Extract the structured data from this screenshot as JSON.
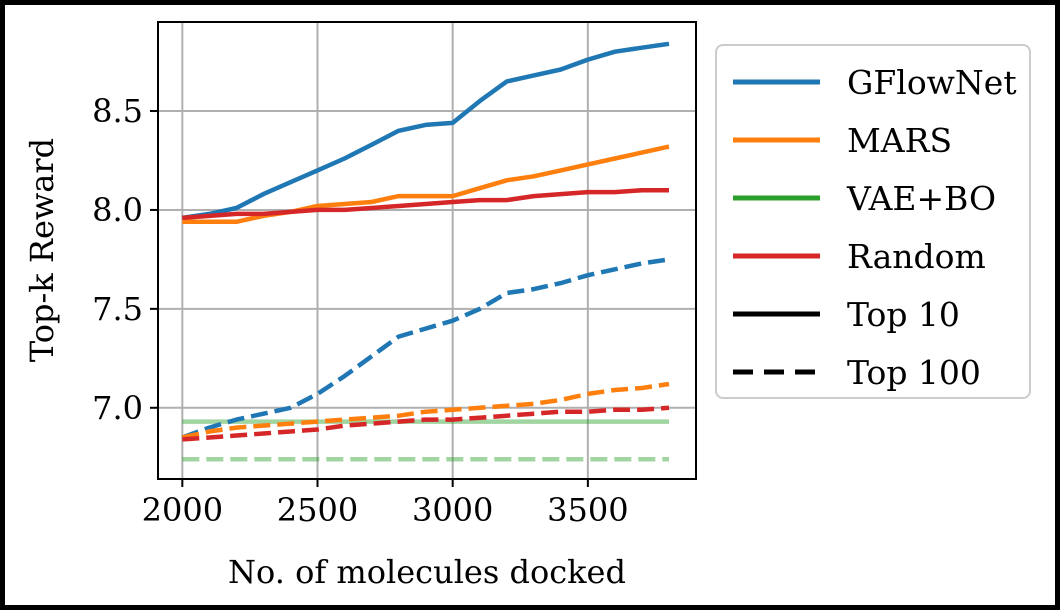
{
  "chart_data": {
    "type": "line",
    "xlabel": "No. of molecules docked",
    "ylabel": "Top-k Reward",
    "xlim": [
      1910,
      3900
    ],
    "ylim": [
      6.64,
      8.95
    ],
    "xticks": [
      2000,
      2500,
      3000,
      3500
    ],
    "yticks": [
      7.0,
      7.5,
      8.0,
      8.5
    ],
    "xtick_labels": [
      "2000",
      "2500",
      "3000",
      "3500"
    ],
    "ytick_labels": [
      "7.0",
      "7.5",
      "8.0",
      "8.5"
    ],
    "grid": true,
    "legend_position": "right-outside",
    "legend": [
      {
        "label": "GFlowNet",
        "color": "#1f77b4",
        "style": "solid"
      },
      {
        "label": "MARS",
        "color": "#ff7f0e",
        "style": "solid"
      },
      {
        "label": "VAE+BO",
        "color": "#2ca02c",
        "style": "solid"
      },
      {
        "label": "Random",
        "color": "#d62728",
        "style": "solid"
      },
      {
        "label": "Top 10",
        "color": "#000000",
        "style": "solid"
      },
      {
        "label": "Top 100",
        "color": "#000000",
        "style": "dashed"
      }
    ],
    "series": [
      {
        "method": "GFlowNet",
        "k": "Top 10",
        "color": "#1f77b4",
        "dash": false,
        "alpha": 1,
        "x": [
          2000,
          2100,
          2200,
          2300,
          2400,
          2500,
          2600,
          2700,
          2800,
          2900,
          3000,
          3100,
          3200,
          3300,
          3400,
          3500,
          3600,
          3700,
          3800
        ],
        "y": [
          7.96,
          7.98,
          8.01,
          8.08,
          8.14,
          8.2,
          8.26,
          8.33,
          8.4,
          8.43,
          8.44,
          8.55,
          8.65,
          8.68,
          8.71,
          8.76,
          8.8,
          8.82,
          8.84
        ]
      },
      {
        "method": "MARS",
        "k": "Top 10",
        "color": "#ff7f0e",
        "dash": false,
        "alpha": 1,
        "x": [
          2000,
          2100,
          2200,
          2300,
          2400,
          2500,
          2600,
          2700,
          2800,
          2900,
          3000,
          3100,
          3200,
          3300,
          3400,
          3500,
          3600,
          3700,
          3800
        ],
        "y": [
          7.94,
          7.94,
          7.94,
          7.97,
          7.99,
          8.02,
          8.03,
          8.04,
          8.07,
          8.07,
          8.07,
          8.11,
          8.15,
          8.17,
          8.2,
          8.23,
          8.26,
          8.29,
          8.32
        ]
      },
      {
        "method": "VAE+BO",
        "k": "Top 10",
        "color": "#2ca02c",
        "dash": false,
        "alpha": 0.45,
        "x": [
          2000,
          3800
        ],
        "y": [
          6.93,
          6.93
        ]
      },
      {
        "method": "Random",
        "k": "Top 10",
        "color": "#d62728",
        "dash": false,
        "alpha": 1,
        "x": [
          2000,
          2100,
          2200,
          2300,
          2400,
          2500,
          2600,
          2700,
          2800,
          2900,
          3000,
          3100,
          3200,
          3300,
          3400,
          3500,
          3600,
          3700,
          3800
        ],
        "y": [
          7.96,
          7.97,
          7.98,
          7.98,
          7.99,
          8.0,
          8.0,
          8.01,
          8.02,
          8.03,
          8.04,
          8.05,
          8.05,
          8.07,
          8.08,
          8.09,
          8.09,
          8.1,
          8.1
        ]
      },
      {
        "method": "GFlowNet",
        "k": "Top 100",
        "color": "#1f77b4",
        "dash": true,
        "alpha": 1,
        "x": [
          2000,
          2100,
          2200,
          2300,
          2400,
          2500,
          2600,
          2700,
          2800,
          2900,
          3000,
          3100,
          3200,
          3300,
          3400,
          3500,
          3600,
          3700,
          3800
        ],
        "y": [
          6.85,
          6.9,
          6.94,
          6.97,
          7.0,
          7.07,
          7.16,
          7.26,
          7.36,
          7.4,
          7.44,
          7.5,
          7.58,
          7.6,
          7.63,
          7.67,
          7.7,
          7.73,
          7.75
        ]
      },
      {
        "method": "MARS",
        "k": "Top 100",
        "color": "#ff7f0e",
        "dash": true,
        "alpha": 1,
        "x": [
          2000,
          2100,
          2200,
          2300,
          2400,
          2500,
          2600,
          2700,
          2800,
          2900,
          3000,
          3100,
          3200,
          3300,
          3400,
          3500,
          3600,
          3700,
          3800
        ],
        "y": [
          6.85,
          6.88,
          6.9,
          6.91,
          6.92,
          6.93,
          6.94,
          6.95,
          6.96,
          6.98,
          6.99,
          7.0,
          7.01,
          7.02,
          7.04,
          7.07,
          7.09,
          7.1,
          7.12
        ]
      },
      {
        "method": "VAE+BO",
        "k": "Top 100",
        "color": "#2ca02c",
        "dash": true,
        "alpha": 0.45,
        "x": [
          2000,
          3800
        ],
        "y": [
          6.74,
          6.74
        ]
      },
      {
        "method": "Random",
        "k": "Top 100",
        "color": "#d62728",
        "dash": true,
        "alpha": 1,
        "x": [
          2000,
          2100,
          2200,
          2300,
          2400,
          2500,
          2600,
          2700,
          2800,
          2900,
          3000,
          3100,
          3200,
          3300,
          3400,
          3500,
          3600,
          3700,
          3800
        ],
        "y": [
          6.84,
          6.85,
          6.86,
          6.87,
          6.88,
          6.89,
          6.91,
          6.92,
          6.93,
          6.94,
          6.94,
          6.95,
          6.96,
          6.97,
          6.98,
          6.98,
          6.99,
          6.99,
          7.0
        ]
      }
    ]
  }
}
